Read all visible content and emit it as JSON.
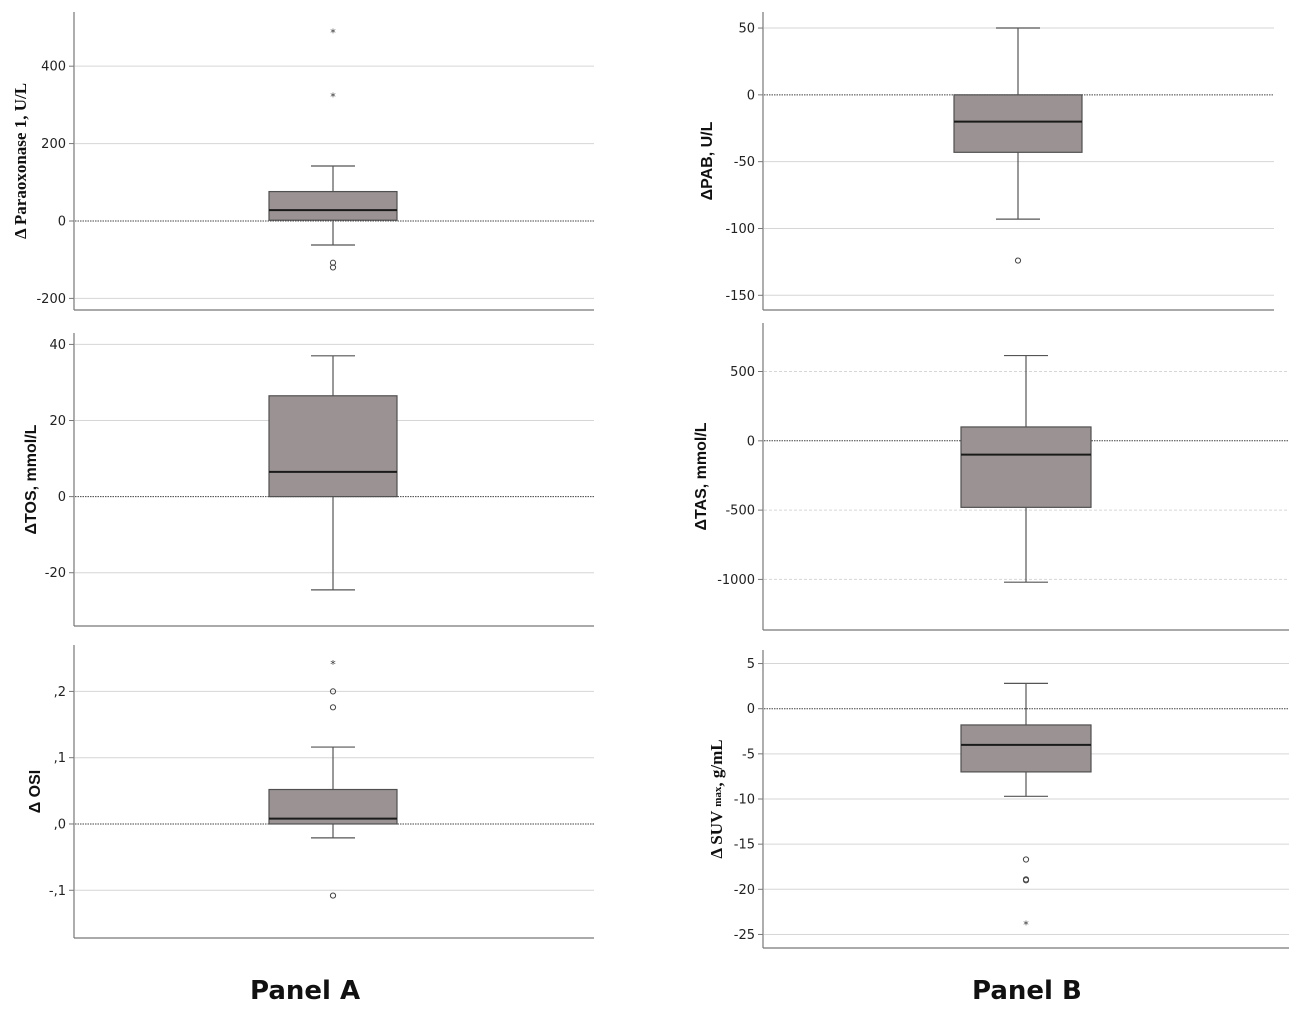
{
  "panel_labels": {
    "a": "Panel A",
    "b": "Panel B"
  },
  "colors": {
    "box_fill": "#9b9393",
    "box_stroke": "#505050",
    "median": "#1a1a1a",
    "whisker": "#555555",
    "grid": "#d6d6d6",
    "zero_line": "#444444",
    "axis": "#777777"
  },
  "chart_data": [
    {
      "id": "paraoxonase",
      "panel": "Panel A",
      "type": "box",
      "ylabel": "Δ  Paraoxonase 1, U/L",
      "ylim": [
        -230,
        540
      ],
      "yticks": [
        -200,
        0,
        200,
        400
      ],
      "tick_labels": [
        "-200",
        "0",
        "200",
        "400"
      ],
      "grid_lines": [
        -200,
        0,
        200,
        400
      ],
      "dashed_grid": false,
      "zero_line": true,
      "box": {
        "whisker_low": -62,
        "q1": 2,
        "median": 28,
        "q3": 76,
        "whisker_high": 142
      },
      "outliers": [
        {
          "value": -108,
          "kind": "circle"
        },
        {
          "value": -120,
          "kind": "circle"
        },
        {
          "value": 322,
          "kind": "star"
        },
        {
          "value": 487,
          "kind": "star"
        }
      ]
    },
    {
      "id": "tos",
      "panel": "Panel A",
      "type": "box",
      "ylabel": "ΔTOS, mmol/L",
      "ylim": [
        -34,
        43
      ],
      "yticks": [
        -20,
        0,
        20,
        40
      ],
      "tick_labels": [
        "-20",
        "0",
        "20",
        "40"
      ],
      "grid_lines": [
        -20,
        0,
        20,
        40
      ],
      "dashed_grid": false,
      "zero_line": true,
      "box": {
        "whisker_low": -24.5,
        "q1": 0,
        "median": 6.5,
        "q3": 26.5,
        "whisker_high": 37
      },
      "outliers": []
    },
    {
      "id": "osi",
      "panel": "Panel A",
      "type": "box",
      "ylabel": "Δ OSI",
      "ylim": [
        -0.172,
        0.27
      ],
      "yticks": [
        -0.1,
        0.0,
        0.1,
        0.2
      ],
      "tick_labels": [
        ",1-",
        ",0",
        ",1",
        ",2"
      ],
      "grid_lines": [
        -0.1,
        0.0,
        0.1,
        0.2
      ],
      "dashed_grid": false,
      "zero_line": true,
      "box": {
        "whisker_low": -0.021,
        "q1": 0.0,
        "median": 0.008,
        "q3": 0.052,
        "whisker_high": 0.116
      },
      "outliers": [
        {
          "value": -0.108,
          "kind": "circle"
        },
        {
          "value": 0.176,
          "kind": "circle"
        },
        {
          "value": 0.2,
          "kind": "circle"
        },
        {
          "value": 0.241,
          "kind": "star"
        }
      ]
    },
    {
      "id": "pab",
      "panel": "Panel B",
      "type": "box",
      "ylabel": "ΔPAB, U/L",
      "ylim": [
        -161,
        62
      ],
      "yticks": [
        -150,
        -100,
        -50,
        0,
        50
      ],
      "tick_labels": [
        "-150",
        "-100",
        "-50",
        "0",
        "50"
      ],
      "grid_lines": [
        -150,
        -100,
        -50,
        0,
        50
      ],
      "dashed_grid": false,
      "zero_line": true,
      "box": {
        "whisker_low": -93,
        "q1": -43,
        "median": -20,
        "q3": 0,
        "whisker_high": 50
      },
      "outliers": [
        {
          "value": -124,
          "kind": "circle"
        }
      ]
    },
    {
      "id": "tas",
      "panel": "Panel B",
      "type": "box",
      "ylabel": "ΔTAS, mmol/L",
      "ylim": [
        -1365,
        850
      ],
      "yticks": [
        -1000,
        -500,
        0,
        500
      ],
      "tick_labels": [
        "-1000",
        "-500",
        "0",
        "500"
      ],
      "grid_lines": [
        -1000,
        -500,
        0,
        500
      ],
      "dashed_grid": true,
      "zero_line": true,
      "box": {
        "whisker_low": -1020,
        "q1": -480,
        "median": -100,
        "q3": 100,
        "whisker_high": 615
      },
      "outliers": []
    },
    {
      "id": "suv",
      "panel": "Panel B",
      "type": "box",
      "ylabel": "Δ SUV ",
      "ylabel_sub": "max",
      "ylabel_tail": ", g/mL",
      "ylim": [
        -26.5,
        6.5
      ],
      "yticks": [
        -25,
        -20,
        -15,
        -10,
        -5,
        0,
        5
      ],
      "tick_labels": [
        "-25",
        "-20",
        "-15",
        "-10",
        "-5",
        "0",
        "5"
      ],
      "grid_lines": [
        -25,
        -20,
        -15,
        -10,
        -5,
        0,
        5
      ],
      "dashed_grid": false,
      "zero_line": true,
      "box": {
        "whisker_low": -9.7,
        "q1": -7.0,
        "median": -4.0,
        "q3": -1.8,
        "whisker_high": 2.8
      },
      "outliers": [
        {
          "value": -16.7,
          "kind": "circle"
        },
        {
          "value": -18.9,
          "kind": "circle"
        },
        {
          "value": -19.0,
          "kind": "circle"
        },
        {
          "value": -23.9,
          "kind": "star"
        }
      ]
    }
  ]
}
